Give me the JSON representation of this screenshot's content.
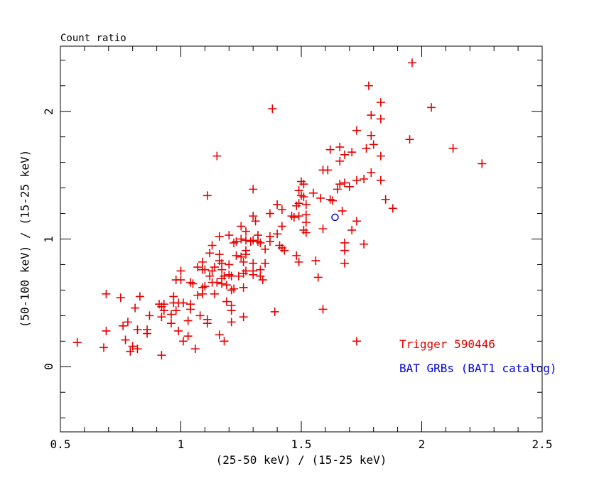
{
  "title": "Count ratio",
  "colors": {
    "background": "#ffffff",
    "axis": "#000000",
    "marker_red": "#e60000",
    "marker_blue": "#0000dd"
  },
  "legend": [
    {
      "label": "Trigger 590446",
      "color": "#e60000"
    },
    {
      "label": "BAT GRBs (BAT1 catalog)",
      "color": "#0000dd"
    }
  ],
  "chart_data": {
    "type": "scatter",
    "title": "Count ratio",
    "xlabel": "(25-50 keV) / (15-25 keV)",
    "ylabel": "(50-100 keV) / (15-25 keV)",
    "xlim": [
      0.5,
      2.5
    ],
    "ylim": [
      -0.51,
      2.51
    ],
    "x_ticks": [
      0.5,
      1,
      1.5,
      2,
      2.5
    ],
    "x_tick_labels": [
      "0.5",
      "1",
      "1.5",
      "2",
      "2.5"
    ],
    "x_minor_step": 0.1,
    "y_ticks": [
      0,
      1,
      2
    ],
    "y_tick_labels": [
      "0",
      "1",
      "2"
    ],
    "y_minor_step": 0.2,
    "grid": false,
    "legend_position": "inside-bottom-right",
    "series": [
      {
        "name": "Trigger 590446",
        "marker": "plus",
        "color": "#e60000",
        "points": [
          [
            1.15,
            1.65
          ],
          [
            1.38,
            2.02
          ],
          [
            1.78,
            2.2
          ],
          [
            1.83,
            2.07
          ],
          [
            1.79,
            1.97
          ],
          [
            1.83,
            1.94
          ],
          [
            1.73,
            1.85
          ],
          [
            1.79,
            1.81
          ],
          [
            1.8,
            1.74
          ],
          [
            1.77,
            1.71
          ],
          [
            1.62,
            1.7
          ],
          [
            1.66,
            1.72
          ],
          [
            1.68,
            1.66
          ],
          [
            1.71,
            1.68
          ],
          [
            1.83,
            1.65
          ],
          [
            1.66,
            1.61
          ],
          [
            1.96,
            2.38
          ],
          [
            2.04,
            2.03
          ],
          [
            1.95,
            1.78
          ],
          [
            2.13,
            1.71
          ],
          [
            1.11,
            1.34
          ],
          [
            1.16,
            1.02
          ],
          [
            1.13,
            0.95
          ],
          [
            1.12,
            0.89
          ],
          [
            1.16,
            0.88
          ],
          [
            1.16,
            0.83
          ],
          [
            1.09,
            0.82
          ],
          [
            1.07,
            0.78
          ],
          [
            1.09,
            0.76
          ],
          [
            1.1,
            0.76
          ],
          [
            1.0,
            0.75
          ],
          [
            1.13,
            0.75
          ],
          [
            1.14,
            0.78
          ],
          [
            1.59,
            1.54
          ],
          [
            1.61,
            1.54
          ],
          [
            1.79,
            1.52
          ],
          [
            1.83,
            1.46
          ],
          [
            1.73,
            1.46
          ],
          [
            1.76,
            1.47
          ],
          [
            1.68,
            1.44
          ],
          [
            1.7,
            1.41
          ],
          [
            1.66,
            1.43
          ],
          [
            1.65,
            1.39
          ],
          [
            1.5,
            1.45
          ],
          [
            1.51,
            1.43
          ],
          [
            1.49,
            1.38
          ],
          [
            1.3,
            1.39
          ],
          [
            1.55,
            1.36
          ],
          [
            1.58,
            1.32
          ],
          [
            1.62,
            1.31
          ],
          [
            1.63,
            1.3
          ],
          [
            1.5,
            1.34
          ],
          [
            1.51,
            1.33
          ],
          [
            1.48,
            1.26
          ],
          [
            1.49,
            1.28
          ],
          [
            1.52,
            1.27
          ],
          [
            1.4,
            1.27
          ],
          [
            1.42,
            1.23
          ],
          [
            1.37,
            1.2
          ],
          [
            1.67,
            1.22
          ],
          [
            1.3,
            1.18
          ],
          [
            1.31,
            1.14
          ],
          [
            1.46,
            1.18
          ],
          [
            1.47,
            1.17
          ],
          [
            1.49,
            1.18
          ],
          [
            1.52,
            1.19
          ],
          [
            1.52,
            1.13
          ],
          [
            1.42,
            1.1
          ],
          [
            1.25,
            1.1
          ],
          [
            1.27,
            1.06
          ],
          [
            1.73,
            1.14
          ],
          [
            1.71,
            1.07
          ],
          [
            1.59,
            1.08
          ],
          [
            1.51,
            1.07
          ],
          [
            1.52,
            1.05
          ],
          [
            1.2,
            1.03
          ],
          [
            1.22,
            0.97
          ],
          [
            1.25,
            1.0
          ],
          [
            1.27,
            0.99
          ],
          [
            1.29,
            0.98
          ],
          [
            1.3,
            0.99
          ],
          [
            1.32,
            1.03
          ],
          [
            1.32,
            0.98
          ],
          [
            1.23,
            0.98
          ],
          [
            1.33,
            0.97
          ],
          [
            1.37,
            1.02
          ],
          [
            1.37,
            0.98
          ],
          [
            1.4,
            1.04
          ],
          [
            1.35,
            0.92
          ],
          [
            1.27,
            0.91
          ],
          [
            1.23,
            0.87
          ],
          [
            1.25,
            0.86
          ],
          [
            1.27,
            0.88
          ],
          [
            1.41,
            0.95
          ],
          [
            1.42,
            0.93
          ],
          [
            1.43,
            0.91
          ],
          [
            1.48,
            0.87
          ],
          [
            1.49,
            0.82
          ],
          [
            1.56,
            0.83
          ],
          [
            1.68,
            0.97
          ],
          [
            1.76,
            0.96
          ],
          [
            1.68,
            0.91
          ],
          [
            1.68,
            0.81
          ],
          [
            1.26,
            0.82
          ],
          [
            1.3,
            0.81
          ],
          [
            1.33,
            0.76
          ],
          [
            1.35,
            0.81
          ],
          [
            1.27,
            0.75
          ],
          [
            1.3,
            0.75
          ],
          [
            1.2,
            0.8
          ],
          [
            1.17,
            0.81
          ],
          [
            1.17,
            0.76
          ],
          [
            2.25,
            1.59
          ],
          [
            1.85,
            1.31
          ],
          [
            1.88,
            1.24
          ],
          [
            0.98,
            0.68
          ],
          [
            1.0,
            0.68
          ],
          [
            1.04,
            0.66
          ],
          [
            1.05,
            0.65
          ],
          [
            1.09,
            0.62
          ],
          [
            1.1,
            0.63
          ],
          [
            1.13,
            0.66
          ],
          [
            1.15,
            0.66
          ],
          [
            1.12,
            0.71
          ],
          [
            1.17,
            0.69
          ],
          [
            1.14,
            0.57
          ],
          [
            1.07,
            0.56
          ],
          [
            1.09,
            0.57
          ],
          [
            0.97,
            0.55
          ],
          [
            0.69,
            0.57
          ],
          [
            0.75,
            0.54
          ],
          [
            0.83,
            0.55
          ],
          [
            0.81,
            0.46
          ],
          [
            0.91,
            0.49
          ],
          [
            0.93,
            0.49
          ],
          [
            0.92,
            0.47
          ],
          [
            0.93,
            0.44
          ],
          [
            0.96,
            0.41
          ],
          [
            0.97,
            0.5
          ],
          [
            0.99,
            0.5
          ],
          [
            1.01,
            0.5
          ],
          [
            1.04,
            0.49
          ],
          [
            1.04,
            0.45
          ],
          [
            0.98,
            0.44
          ],
          [
            0.87,
            0.4
          ],
          [
            0.92,
            0.39
          ],
          [
            1.08,
            0.4
          ],
          [
            0.96,
            0.34
          ],
          [
            1.03,
            0.36
          ],
          [
            1.11,
            0.34
          ],
          [
            1.11,
            0.37
          ],
          [
            0.76,
            0.32
          ],
          [
            0.78,
            0.35
          ],
          [
            0.82,
            0.29
          ],
          [
            0.69,
            0.28
          ],
          [
            0.86,
            0.29
          ],
          [
            0.86,
            0.26
          ],
          [
            0.99,
            0.28
          ],
          [
            1.03,
            0.24
          ],
          [
            0.77,
            0.21
          ],
          [
            0.57,
            0.19
          ],
          [
            0.8,
            0.16
          ],
          [
            0.79,
            0.12
          ],
          [
            0.82,
            0.14
          ],
          [
            0.92,
            0.09
          ],
          [
            0.68,
            0.15
          ],
          [
            1.06,
            0.14
          ],
          [
            1.01,
            0.2
          ],
          [
            1.16,
            0.25
          ],
          [
            1.2,
            0.72
          ],
          [
            1.21,
            0.71
          ],
          [
            1.24,
            0.71
          ],
          [
            1.26,
            0.73
          ],
          [
            1.3,
            0.72
          ],
          [
            1.33,
            0.71
          ],
          [
            1.34,
            0.68
          ],
          [
            1.26,
            0.62
          ],
          [
            1.22,
            0.61
          ],
          [
            1.21,
            0.6
          ],
          [
            1.19,
            0.64
          ],
          [
            1.17,
            0.65
          ],
          [
            1.19,
            0.51
          ],
          [
            1.21,
            0.48
          ],
          [
            1.21,
            0.44
          ],
          [
            1.26,
            0.39
          ],
          [
            1.21,
            0.35
          ],
          [
            1.39,
            0.43
          ],
          [
            1.57,
            0.7
          ],
          [
            1.59,
            0.45
          ],
          [
            1.73,
            0.2
          ],
          [
            1.18,
            0.2
          ],
          [
            1.18,
            0.71
          ]
        ]
      },
      {
        "name": "BAT GRBs (BAT1 catalog)",
        "marker": "open-circle",
        "color": "#0000dd",
        "points": [
          [
            1.64,
            1.17
          ]
        ]
      }
    ]
  }
}
